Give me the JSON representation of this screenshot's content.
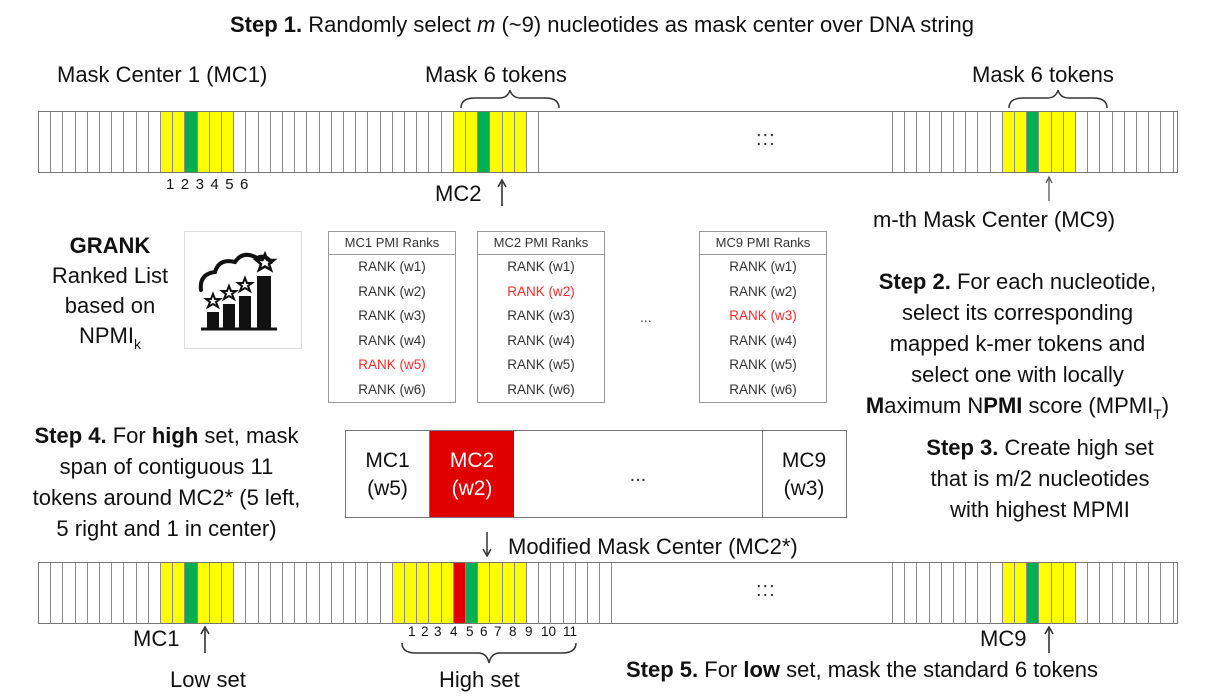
{
  "step1": {
    "label": "Step 1.",
    "text_a": " Randomly select ",
    "var": "m",
    "text_b": " (~9) nucleotides as mask center over DNA string"
  },
  "top_strip": {
    "mc1_label": "Mask Center 1 (MC1)",
    "mask6_label_a": "Mask 6 tokens",
    "mask6_label_b": "Mask 6 tokens",
    "mc1_numbers": [
      "1",
      "2",
      "3",
      "4",
      "5",
      "6"
    ],
    "mc2_label": "MC2",
    "mth_label": "m-th Mask Center (MC9)",
    "ellipsis": ":::"
  },
  "grank": {
    "title": "GRANK",
    "line1": "Ranked List",
    "line2": "based on",
    "line3": "NPMI",
    "sub": "k"
  },
  "pmi_tables": [
    {
      "header": "MC1 PMI Ranks",
      "rows": [
        "RANK (w1)",
        "RANK (w2)",
        "RANK (w3)",
        "RANK (w4)",
        "RANK (w5)",
        "RANK (w6)"
      ],
      "highlight": 4
    },
    {
      "header": "MC2 PMI Ranks",
      "rows": [
        "RANK (w1)",
        "RANK (w2)",
        "RANK (w3)",
        "RANK (w4)",
        "RANK (w5)",
        "RANK (w6)"
      ],
      "highlight": 1
    },
    {
      "header": "MC9 PMI Ranks",
      "rows": [
        "RANK (w1)",
        "RANK (w2)",
        "RANK (w3)",
        "RANK (w4)",
        "RANK (w5)",
        "RANK (w6)"
      ],
      "highlight": 2
    }
  ],
  "pmi_ellipsis": "...",
  "step2": {
    "label": "Step 2.",
    "l1": " For each nucleotide,",
    "l2": "select its corresponding",
    "l3": "mapped k-mer tokens and",
    "l4": "select one with locally",
    "l5_m": "M",
    "l5_a": "aximum N",
    "l5_pmi": "PMI",
    "l5_b": " score (MPMI",
    "l5_sub": "T",
    "l5_c": ")"
  },
  "step3": {
    "label": "Step 3.",
    "l1": " Create high set",
    "l2": "that is m/2 nucleotides",
    "l3": "with highest MPMI"
  },
  "step4": {
    "label": "Step 4.",
    "l1a": " For ",
    "l1b": "high",
    "l1c": " set, mask",
    "l2": "span of contiguous 11",
    "l3": "tokens around MC2* (5 left,",
    "l4": "5 right and 1 in center)"
  },
  "mc_box": {
    "mc1": "MC1",
    "mc1_w": "(w5)",
    "mc2": "MC2",
    "mc2_w": "(w2)",
    "dots": "...",
    "mc9": "MC9",
    "mc9_w": "(w3)"
  },
  "modified_label": "Modified Mask Center (MC2*)",
  "bottom_strip": {
    "mc1_label": "MC1",
    "low_set": "Low set",
    "high_numbers": [
      "1",
      "2",
      "3",
      "4",
      "5",
      "6",
      "7",
      "8",
      "9",
      "10",
      "11"
    ],
    "high_set": "High set",
    "mc9_label": "MC9",
    "ellipsis": ":::"
  },
  "step5": {
    "label": "Step 5.",
    "a": " For ",
    "b": "low",
    "c": " set, mask the standard 6 tokens"
  },
  "colors": {
    "mask": "#ffff00",
    "center": "#00b050",
    "modified": "#e00000",
    "highlight_text": "#ff2a2a"
  }
}
